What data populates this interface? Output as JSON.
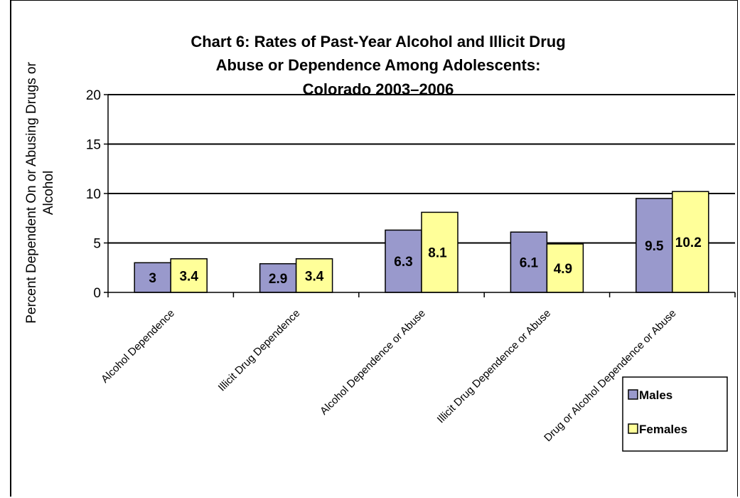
{
  "chart_data": {
    "type": "bar",
    "title_lines": [
      "Chart 6: Rates of Past-Year Alcohol and Illicit Drug",
      "Abuse or Dependence Among Adolescents:",
      "Colorado 2003–2006"
    ],
    "xlabel": "",
    "ylabel_lines": [
      "Percent Dependent On or Abusing Drugs or",
      "Alcohol"
    ],
    "ylim": [
      0,
      20
    ],
    "yticks": [
      0,
      5,
      10,
      15,
      20
    ],
    "grid": true,
    "legend_position": "bottom-right",
    "categories": [
      "Alcohol Dependence",
      "Illicit Drug Dependence",
      "Alcohol Dependence or Abuse",
      "Illicit Drug Dependence or Abuse",
      "Drug or Alcohol Dependence or Abuse"
    ],
    "series": [
      {
        "name": "Males",
        "color": "#9999cc",
        "values": [
          3,
          2.9,
          6.3,
          6.1,
          9.5
        ]
      },
      {
        "name": "Females",
        "color": "#ffff99",
        "values": [
          3.4,
          3.4,
          8.1,
          4.9,
          10.2
        ]
      }
    ],
    "data_labels": [
      [
        "3",
        "2.9",
        "6.3",
        "6.1",
        "9.5"
      ],
      [
        "3.4",
        "3.4",
        "8.1",
        "4.9",
        "10.2"
      ]
    ]
  }
}
